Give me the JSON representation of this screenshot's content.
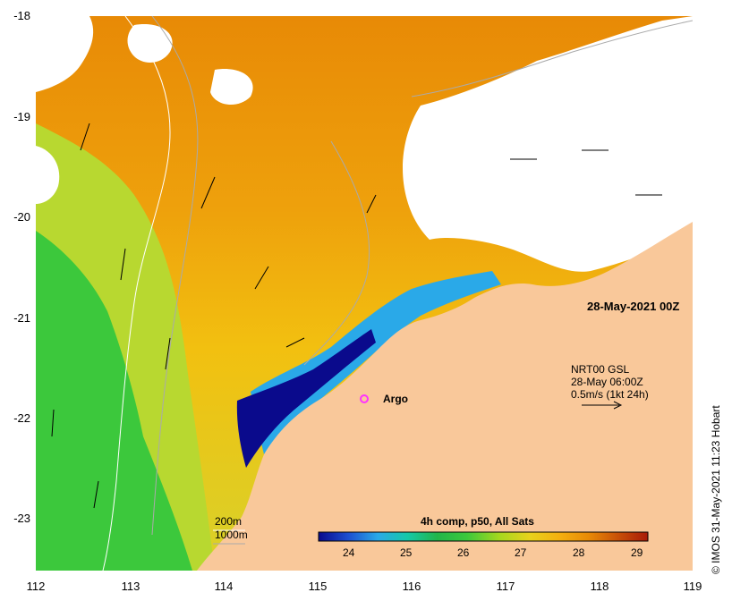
{
  "map": {
    "timestamp": "28-May-2021 00Z",
    "copyright_credit": "© IMOS 31-May-2021 11:23 Hobart",
    "x_ticks": [
      "112",
      "113",
      "114",
      "115",
      "116",
      "117",
      "118",
      "119"
    ],
    "y_ticks": [
      "-18",
      "-19",
      "-20",
      "-21",
      "-22",
      "-23"
    ],
    "argo": {
      "label": "Argo",
      "marker_color": "#ff33ff"
    },
    "current_legend": {
      "line1": "NRT00 GSL",
      "line2": "28-May 06:00Z",
      "line3": "0.5m/s (1kt 24h)"
    },
    "depth_contours": {
      "c1": "200m",
      "c2": "1000m"
    },
    "colorbar": {
      "title": "4h comp, p50, All Sats",
      "ticks": [
        "24",
        "25",
        "26",
        "27",
        "28",
        "29"
      ],
      "colors": [
        "#0a0a8c",
        "#1d4fd0",
        "#2aa9e8",
        "#16c8a8",
        "#22b54a",
        "#3cc83c",
        "#a6d81e",
        "#e8d21c",
        "#f4b010",
        "#e88a06",
        "#c85008",
        "#a81a08"
      ]
    },
    "colors": {
      "land": "#f9c89a",
      "no_data": "#ffffff",
      "sst_warm": "#e88a06",
      "sst_mid": "#f2c010",
      "sst_cool": "#3cc83c",
      "sst_cold": "#0a0a8c"
    }
  }
}
